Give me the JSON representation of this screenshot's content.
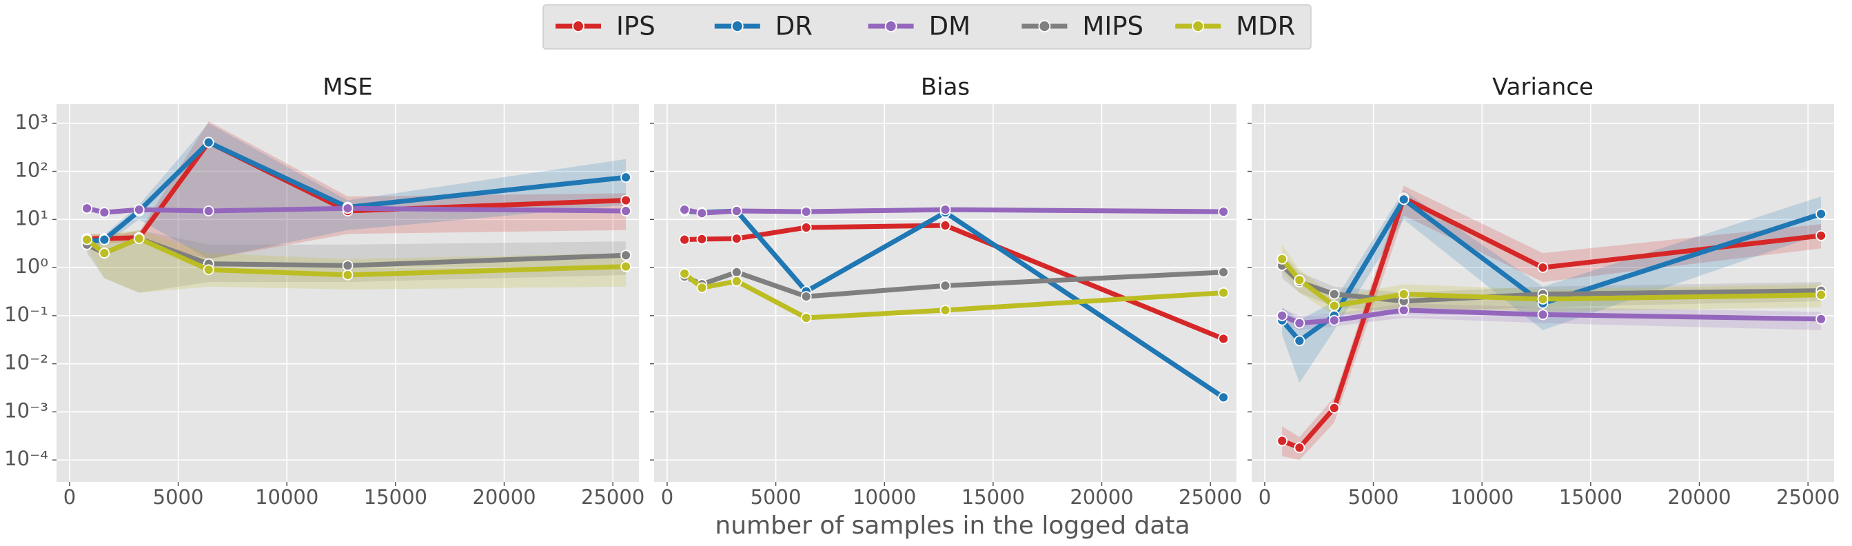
{
  "x_label": "number of samples in the logged data",
  "legend_position": "upper center",
  "chart_data": [
    {
      "type": "line",
      "title": "MSE",
      "yscale": "log",
      "grid": true,
      "x": [
        800,
        1600,
        3200,
        6400,
        12800,
        25600
      ],
      "xlim": [
        -600,
        26200
      ],
      "xticks": [
        0,
        5000,
        10000,
        15000,
        20000,
        25000
      ],
      "ylim": [
        3.5e-05,
        2500
      ],
      "yticks": [
        {
          "value": 0.0001,
          "label": "10⁻⁴"
        },
        {
          "value": 0.001,
          "label": "10⁻³"
        },
        {
          "value": 0.01,
          "label": "10⁻²"
        },
        {
          "value": 0.1,
          "label": "10⁻¹"
        },
        {
          "value": 1,
          "label": "10⁰"
        },
        {
          "value": 10,
          "label": "10¹"
        },
        {
          "value": 100,
          "label": "10²"
        },
        {
          "value": 1000,
          "label": "10³"
        }
      ],
      "series": [
        {
          "name": "IPS",
          "color": "#d62728",
          "values": [
            4,
            4,
            4.2,
            400,
            15,
            25
          ],
          "lower": [
            3.2,
            3.2,
            3.4,
            1.5,
            5,
            6
          ],
          "upper": [
            5,
            5,
            5.5,
            1100,
            30,
            35
          ]
        },
        {
          "name": "DR",
          "color": "#1f77b4",
          "values": [
            3.5,
            3.8,
            15,
            400,
            18,
            75
          ],
          "lower": [
            2.8,
            3,
            10,
            1.5,
            6,
            20
          ],
          "upper": [
            4.5,
            4.8,
            20,
            1000,
            25,
            180
          ]
        },
        {
          "name": "DM",
          "color": "#9467bd",
          "values": [
            17,
            14,
            16,
            15,
            17,
            15
          ],
          "lower": [
            15,
            12.5,
            14,
            13.5,
            15.5,
            13.5
          ],
          "upper": [
            19,
            15.5,
            18,
            16.5,
            18.5,
            16.5
          ]
        },
        {
          "name": "MIPS",
          "color": "#7f7f7f",
          "values": [
            3,
            2,
            4,
            1.2,
            1.1,
            1.8
          ],
          "lower": [
            2,
            0.6,
            0.3,
            0.5,
            0.5,
            0.7
          ],
          "upper": [
            4,
            4,
            6,
            3,
            3,
            3.5
          ]
        },
        {
          "name": "MDR",
          "color": "#bcbd22",
          "values": [
            3.8,
            2,
            4,
            0.9,
            0.7,
            1.05
          ],
          "lower": [
            2.5,
            0.6,
            0.3,
            0.4,
            0.35,
            0.4
          ],
          "upper": [
            5,
            5,
            6,
            2,
            1.5,
            2
          ]
        }
      ]
    },
    {
      "type": "line",
      "title": "Bias",
      "yscale": "log",
      "grid": true,
      "x": [
        800,
        1600,
        3200,
        6400,
        12800,
        25600
      ],
      "xlim": [
        -600,
        26200
      ],
      "xticks": [
        0,
        5000,
        10000,
        15000,
        20000,
        25000
      ],
      "ylim": [
        3.5e-05,
        2500
      ],
      "yticks": [
        0.0001,
        0.001,
        0.01,
        0.1,
        1,
        10,
        100,
        1000
      ],
      "series": [
        {
          "name": "IPS",
          "color": "#d62728",
          "values": [
            3.8,
            3.9,
            4,
            6.8,
            7.5,
            0.033
          ]
        },
        {
          "name": "DR",
          "color": "#1f77b4",
          "values": [
            15,
            14,
            15,
            0.32,
            14,
            0.002
          ]
        },
        {
          "name": "DM",
          "color": "#9467bd",
          "values": [
            16,
            13.5,
            15,
            14.5,
            16,
            14.5
          ]
        },
        {
          "name": "MIPS",
          "color": "#7f7f7f",
          "values": [
            0.65,
            0.45,
            0.8,
            0.25,
            0.42,
            0.8
          ]
        },
        {
          "name": "MDR",
          "color": "#bcbd22",
          "values": [
            0.75,
            0.38,
            0.52,
            0.09,
            0.13,
            0.3
          ]
        }
      ]
    },
    {
      "type": "line",
      "title": "Variance",
      "yscale": "log",
      "grid": true,
      "x": [
        800,
        1600,
        3200,
        6400,
        12800,
        25600
      ],
      "xlim": [
        -600,
        26200
      ],
      "xticks": [
        0,
        5000,
        10000,
        15000,
        20000,
        25000
      ],
      "ylim": [
        3.5e-05,
        2500
      ],
      "yticks": [
        0.0001,
        0.001,
        0.01,
        0.1,
        1,
        10,
        100,
        1000
      ],
      "series": [
        {
          "name": "IPS",
          "color": "#d62728",
          "values": [
            0.00025,
            0.00018,
            0.0012,
            28,
            1,
            4.6
          ],
          "lower": [
            0.00012,
            0.0001,
            0.0006,
            12,
            0.5,
            2.5
          ],
          "upper": [
            0.0005,
            0.0003,
            0.002,
            50,
            2,
            8
          ]
        },
        {
          "name": "DR",
          "color": "#1f77b4",
          "values": [
            0.08,
            0.03,
            0.1,
            26,
            0.18,
            13
          ],
          "lower": [
            0.04,
            0.004,
            0.05,
            10,
            0.05,
            5
          ],
          "upper": [
            0.15,
            0.08,
            0.2,
            40,
            0.4,
            30
          ]
        },
        {
          "name": "DM",
          "color": "#9467bd",
          "values": [
            0.1,
            0.07,
            0.08,
            0.13,
            0.105,
            0.085
          ],
          "lower": [
            0.07,
            0.05,
            0.06,
            0.09,
            0.07,
            0.05
          ],
          "upper": [
            0.14,
            0.1,
            0.11,
            0.18,
            0.15,
            0.12
          ]
        },
        {
          "name": "MIPS",
          "color": "#7f7f7f",
          "values": [
            1.1,
            0.5,
            0.28,
            0.2,
            0.28,
            0.33
          ],
          "lower": [
            0.6,
            0.3,
            0.15,
            0.12,
            0.15,
            0.2
          ],
          "upper": [
            2,
            0.8,
            0.4,
            0.3,
            0.4,
            0.5
          ]
        },
        {
          "name": "MDR",
          "color": "#bcbd22",
          "values": [
            1.5,
            0.55,
            0.16,
            0.28,
            0.22,
            0.27
          ],
          "lower": [
            0.8,
            0.3,
            0.1,
            0.15,
            0.12,
            0.15
          ],
          "upper": [
            3,
            0.9,
            0.25,
            0.45,
            0.35,
            0.45
          ]
        }
      ]
    }
  ]
}
